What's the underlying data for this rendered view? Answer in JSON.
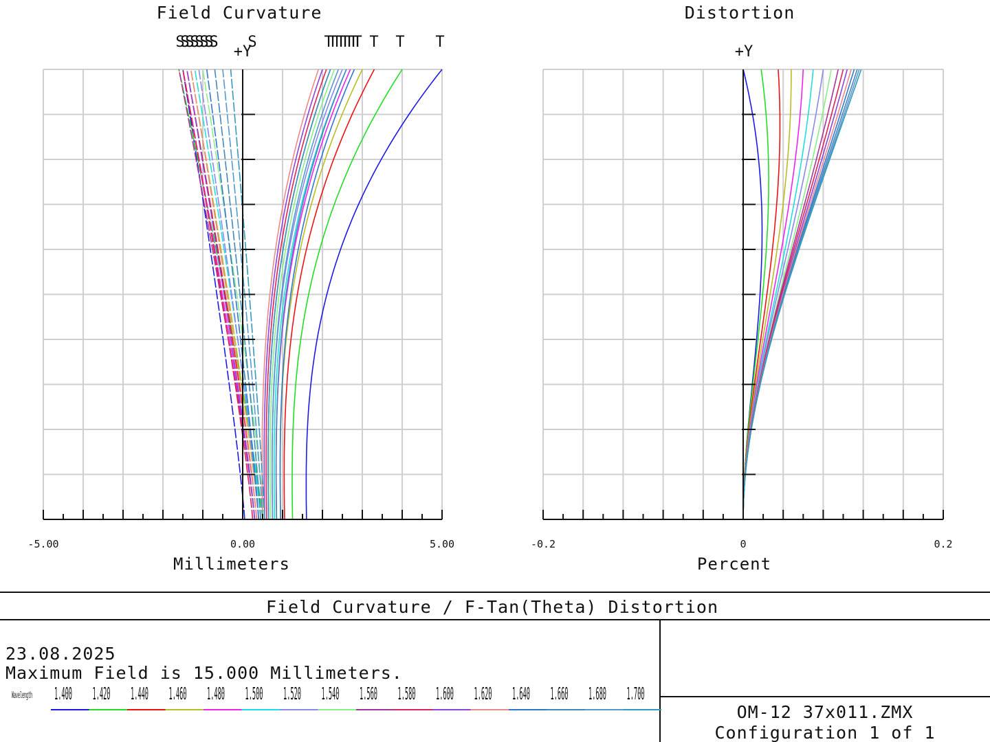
{
  "chart_data": [
    {
      "type": "line",
      "title": "Field Curvature",
      "xlabel": "Millimeters",
      "ylabel": "+Y",
      "xlim": [
        -5,
        5
      ],
      "ylim": [
        0,
        1
      ],
      "x_tick_labels": [
        "-5.00",
        "0.00",
        "5.00"
      ],
      "legend": {
        "placement": "top",
        "sagittal": "S",
        "tangential": "T"
      },
      "grid": true,
      "series": [
        {
          "sag_base": 0.05,
          "sag_top": -1.5,
          "tan_base": 1.6,
          "tan_top": 5.0,
          "color": "#1a1ae6"
        },
        {
          "sag_base": 0.5,
          "sag_top": -1.6,
          "tan_base": 1.25,
          "tan_top": 4.0,
          "color": "#22dd22"
        },
        {
          "sag_base": 0.35,
          "sag_top": -1.4,
          "tan_base": 1.05,
          "tan_top": 3.3,
          "color": "#ee1111"
        },
        {
          "sag_base": 0.4,
          "sag_top": -1.3,
          "tan_base": 0.95,
          "tan_top": 3.0,
          "color": "#bbbb22"
        },
        {
          "sag_base": 0.3,
          "sag_top": -1.5,
          "tan_base": 0.85,
          "tan_top": 2.7,
          "color": "#ee22ee"
        },
        {
          "sag_base": 0.45,
          "sag_top": -1.2,
          "tan_base": 0.8,
          "tan_top": 2.6,
          "color": "#22dddd"
        },
        {
          "sag_base": 0.4,
          "sag_top": -1.1,
          "tan_base": 0.75,
          "tan_top": 2.5,
          "color": "#8888ee"
        },
        {
          "sag_base": 0.55,
          "sag_top": -1.0,
          "tan_base": 0.7,
          "tan_top": 2.3,
          "color": "#88ee88"
        },
        {
          "sag_base": 0.3,
          "sag_top": -1.6,
          "tan_base": 0.65,
          "tan_top": 2.2,
          "color": "#aa3399"
        },
        {
          "sag_base": 0.25,
          "sag_top": -1.5,
          "tan_base": 0.6,
          "tan_top": 2.1,
          "color": "#dd2255"
        },
        {
          "sag_base": 0.3,
          "sag_top": -1.4,
          "tan_base": 0.55,
          "tan_top": 2.0,
          "color": "#8844dd"
        },
        {
          "sag_base": 0.35,
          "sag_top": -1.3,
          "tan_base": 0.5,
          "tan_top": 1.9,
          "color": "#ee8888"
        },
        {
          "sag_base": 0.4,
          "sag_top": -0.9,
          "tan_base": 0.95,
          "tan_top": 2.8,
          "color": "#3377cc"
        },
        {
          "sag_base": 0.45,
          "sag_top": -0.7,
          "tan_base": 0.85,
          "tan_top": 2.6,
          "color": "#4488bb"
        },
        {
          "sag_base": 0.5,
          "sag_top": -0.5,
          "tan_base": 0.75,
          "tan_top": 2.4,
          "color": "#5599cc"
        },
        {
          "sag_base": 0.55,
          "sag_top": -0.3,
          "tan_base": 0.65,
          "tan_top": 2.2,
          "color": "#3399bb"
        }
      ]
    },
    {
      "type": "line",
      "title": "Distortion",
      "xlabel": "Percent",
      "ylabel": "+Y",
      "xlim": [
        -0.2,
        0.2
      ],
      "ylim": [
        0,
        1
      ],
      "x_tick_labels": [
        "-0.2",
        "0",
        "0.2"
      ],
      "grid": true,
      "series": [
        {
          "top": 0.0,
          "bulge": 0.045,
          "color": "#1a1ae6"
        },
        {
          "top": 0.018,
          "bulge": 0.04,
          "color": "#22dd22"
        },
        {
          "top": 0.035,
          "bulge": 0.04,
          "color": "#ee1111"
        },
        {
          "top": 0.048,
          "bulge": 0.04,
          "color": "#bbbb22"
        },
        {
          "top": 0.06,
          "bulge": 0.04,
          "color": "#ee22ee"
        },
        {
          "top": 0.07,
          "bulge": 0.04,
          "color": "#22dddd"
        },
        {
          "top": 0.08,
          "bulge": 0.038,
          "color": "#8888ee"
        },
        {
          "top": 0.088,
          "bulge": 0.038,
          "color": "#88ee88"
        },
        {
          "top": 0.095,
          "bulge": 0.036,
          "color": "#aa3399"
        },
        {
          "top": 0.1,
          "bulge": 0.035,
          "color": "#dd2255"
        },
        {
          "top": 0.104,
          "bulge": 0.035,
          "color": "#8844dd"
        },
        {
          "top": 0.108,
          "bulge": 0.034,
          "color": "#ee8888"
        },
        {
          "top": 0.111,
          "bulge": 0.034,
          "color": "#3377cc"
        },
        {
          "top": 0.114,
          "bulge": 0.033,
          "color": "#4488bb"
        },
        {
          "top": 0.116,
          "bulge": 0.033,
          "color": "#5599cc"
        },
        {
          "top": 0.118,
          "bulge": 0.032,
          "color": "#3399bb"
        }
      ]
    }
  ],
  "footer": {
    "title": "Field Curvature / F-Tan(Theta) Distortion",
    "date": "23.08.2025",
    "max_field": "Maximum Field is 15.000 Millimeters.",
    "wavelength_legend_label": "Wavelength",
    "wavelengths": [
      {
        "label": "1.400",
        "color": "#1a1ae6"
      },
      {
        "label": "1.420",
        "color": "#22dd22"
      },
      {
        "label": "1.440",
        "color": "#ee1111"
      },
      {
        "label": "1.460",
        "color": "#bbbb22"
      },
      {
        "label": "1.480",
        "color": "#ee22ee"
      },
      {
        "label": "1.500",
        "color": "#22dddd"
      },
      {
        "label": "1.520",
        "color": "#8888ee"
      },
      {
        "label": "1.540",
        "color": "#88ee88"
      },
      {
        "label": "1.560",
        "color": "#aa3399"
      },
      {
        "label": "1.580",
        "color": "#dd2255"
      },
      {
        "label": "1.600",
        "color": "#8844dd"
      },
      {
        "label": "1.620",
        "color": "#ee8888"
      },
      {
        "label": "1.640",
        "color": "#3377cc"
      },
      {
        "label": "1.660",
        "color": "#4488bb"
      },
      {
        "label": "1.680",
        "color": "#5599cc"
      },
      {
        "label": "1.700",
        "color": "#3399bb"
      }
    ],
    "file": "OM-12 37x011.ZMX",
    "config": "Configuration 1 of 1"
  }
}
